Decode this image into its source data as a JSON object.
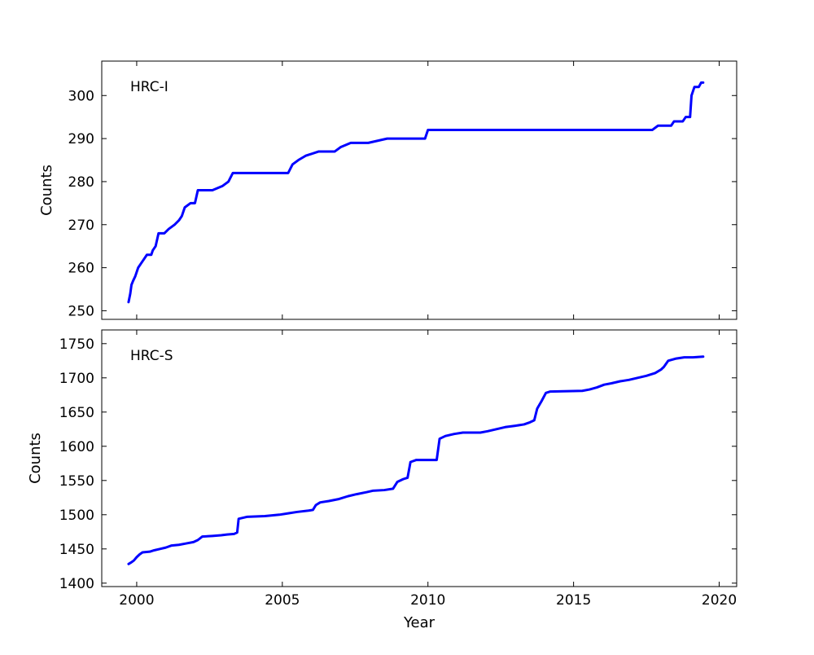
{
  "figure": {
    "background": "#ffffff",
    "line_color": "#0000ff",
    "line_width": 3,
    "axis_color": "#000000"
  },
  "chart_data": [
    {
      "type": "line",
      "label": "HRC-I",
      "ylabel": "Counts",
      "xlabel": "",
      "xlim": [
        1998.8,
        2020.6
      ],
      "ylim": [
        248,
        308
      ],
      "xticks": [
        2000,
        2005,
        2010,
        2015,
        2020
      ],
      "yticks": [
        250,
        260,
        270,
        280,
        290,
        300
      ],
      "grid": false,
      "legend": "none",
      "x": [
        1999.72,
        1999.78,
        1999.82,
        1999.88,
        1999.95,
        2000.05,
        2000.15,
        2000.25,
        2000.35,
        2000.5,
        2000.55,
        2000.65,
        2000.75,
        2000.95,
        2001.1,
        2001.3,
        2001.45,
        2001.55,
        2001.65,
        2001.85,
        2002.0,
        2002.1,
        2002.6,
        2002.95,
        2003.15,
        2003.3,
        2005.2,
        2005.35,
        2005.55,
        2005.8,
        2006.25,
        2006.8,
        2007.0,
        2007.35,
        2007.95,
        2008.6,
        2009.9,
        2010.0,
        2017.7,
        2017.9,
        2018.35,
        2018.45,
        2018.75,
        2018.85,
        2019.0,
        2019.05,
        2019.15,
        2019.3,
        2019.38,
        2019.45
      ],
      "y": [
        252,
        254,
        256,
        257,
        258,
        260,
        261,
        262,
        263,
        263,
        264,
        265,
        268,
        268,
        269,
        270,
        271,
        272,
        274,
        275,
        275,
        278,
        278,
        279,
        280,
        282,
        282,
        284,
        285,
        286,
        287,
        287,
        288,
        289,
        289,
        290,
        290,
        292,
        292,
        293,
        293,
        294,
        294,
        295,
        295,
        300,
        302,
        302,
        303,
        303
      ]
    },
    {
      "type": "line",
      "label": "HRC-S",
      "ylabel": "Counts",
      "xlabel": "Year",
      "xlim": [
        1998.8,
        2020.6
      ],
      "ylim": [
        1395,
        1770
      ],
      "xticks": [
        2000,
        2005,
        2010,
        2015,
        2020
      ],
      "yticks": [
        1400,
        1450,
        1500,
        1550,
        1600,
        1650,
        1700,
        1750
      ],
      "grid": false,
      "legend": "none",
      "x": [
        1999.72,
        1999.8,
        1999.9,
        2000.0,
        2000.1,
        2000.2,
        2000.45,
        2000.6,
        2000.8,
        2001.0,
        2001.2,
        2001.45,
        2001.7,
        2001.95,
        2002.1,
        2002.25,
        2002.6,
        2002.9,
        2003.1,
        2003.35,
        2003.45,
        2003.5,
        2003.8,
        2004.4,
        2004.9,
        2005.2,
        2005.5,
        2005.9,
        2006.05,
        2006.15,
        2006.3,
        2006.6,
        2006.95,
        2007.25,
        2007.55,
        2007.9,
        2008.1,
        2008.5,
        2008.8,
        2008.95,
        2009.15,
        2009.3,
        2009.4,
        2009.6,
        2010.3,
        2010.4,
        2010.6,
        2010.9,
        2011.2,
        2011.8,
        2012.05,
        2012.35,
        2012.65,
        2013.0,
        2013.3,
        2013.5,
        2013.65,
        2013.75,
        2013.9,
        2014.05,
        2014.2,
        2015.3,
        2015.55,
        2015.8,
        2016.05,
        2016.3,
        2016.6,
        2016.9,
        2017.2,
        2017.5,
        2017.8,
        2018.0,
        2018.1,
        2018.25,
        2018.5,
        2018.8,
        2019.1,
        2019.45
      ],
      "y": [
        1428,
        1430,
        1433,
        1438,
        1442,
        1445,
        1446,
        1448,
        1450,
        1452,
        1455,
        1456,
        1458,
        1460,
        1463,
        1468,
        1469,
        1470,
        1471,
        1472,
        1474,
        1494,
        1497,
        1498,
        1500,
        1502,
        1504,
        1506,
        1507,
        1514,
        1518,
        1520,
        1523,
        1527,
        1530,
        1533,
        1535,
        1536,
        1538,
        1548,
        1552,
        1554,
        1577,
        1580,
        1580,
        1611,
        1615,
        1618,
        1620,
        1620,
        1622,
        1625,
        1628,
        1630,
        1632,
        1635,
        1638,
        1655,
        1666,
        1678,
        1680,
        1681,
        1683,
        1686,
        1690,
        1692,
        1695,
        1697,
        1700,
        1703,
        1707,
        1712,
        1716,
        1725,
        1728,
        1730,
        1730,
        1731
      ]
    }
  ]
}
